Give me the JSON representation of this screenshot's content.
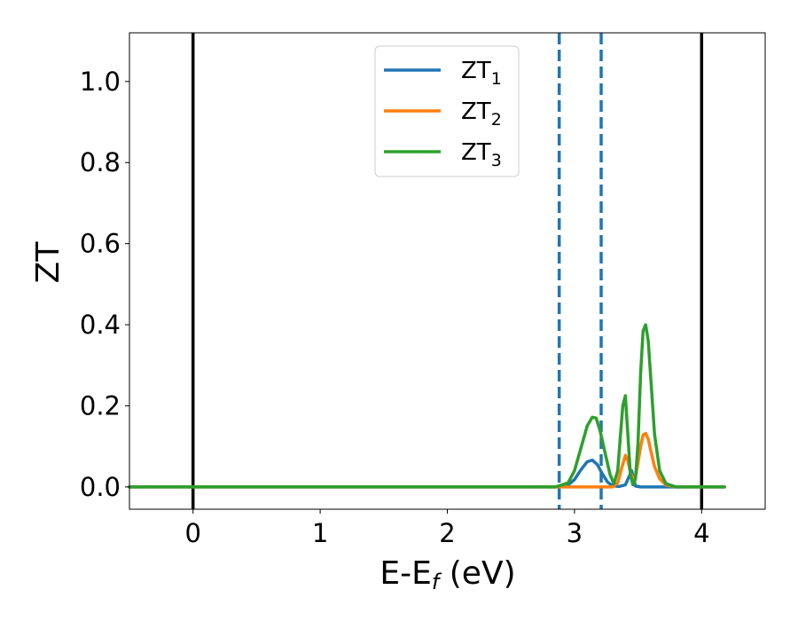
{
  "chart_data": {
    "type": "line",
    "title": "",
    "xlabel": "E-E_f (eV)",
    "xlabel_main": "E-E",
    "xlabel_sub": "f",
    "xlabel_tail": " (eV)",
    "ylabel": "ZT",
    "xlim": [
      -0.5,
      4.5
    ],
    "ylim": [
      -0.055,
      1.12
    ],
    "xticks": [
      0,
      1,
      2,
      3,
      4
    ],
    "xtick_labels": [
      "0",
      "1",
      "2",
      "3",
      "4"
    ],
    "yticks": [
      0.0,
      0.2,
      0.4,
      0.6,
      0.8,
      1.0
    ],
    "ytick_labels": [
      "0.0",
      "0.2",
      "0.4",
      "0.6",
      "0.8",
      "1.0"
    ],
    "grid": false,
    "legend_position": "upper center",
    "vertical_lines": [
      {
        "x": 0.0,
        "style": "solid",
        "color": "#000000"
      },
      {
        "x": 4.0,
        "style": "solid",
        "color": "#000000"
      },
      {
        "x": 2.88,
        "style": "dashed",
        "color": "#1f77b4"
      },
      {
        "x": 3.21,
        "style": "dashed",
        "color": "#1f77b4"
      }
    ],
    "series": [
      {
        "name": "ZT_1",
        "label_main": "ZT",
        "label_sub": "1",
        "color": "#1f77b4",
        "x": [
          -0.5,
          2.85,
          2.95,
          3.0,
          3.05,
          3.1,
          3.14,
          3.18,
          3.22,
          3.26,
          3.3,
          3.35,
          3.4,
          3.45,
          3.48,
          3.52,
          3.6,
          4.18
        ],
        "y": [
          0,
          0,
          0.005,
          0.018,
          0.042,
          0.062,
          0.066,
          0.055,
          0.032,
          0.012,
          0.003,
          0.001,
          0.005,
          0.04,
          0.002,
          0.0,
          0.0,
          0
        ]
      },
      {
        "name": "ZT_2",
        "label_main": "ZT",
        "label_sub": "2",
        "color": "#ff7f0e",
        "x": [
          -0.5,
          3.3,
          3.34,
          3.37,
          3.4,
          3.42,
          3.44,
          3.46,
          3.48,
          3.5,
          3.52,
          3.54,
          3.56,
          3.58,
          3.6,
          3.63,
          3.67,
          3.72,
          3.8,
          4.18
        ],
        "y": [
          0,
          0,
          0.01,
          0.045,
          0.078,
          0.065,
          0.035,
          0.022,
          0.025,
          0.06,
          0.1,
          0.128,
          0.132,
          0.118,
          0.09,
          0.05,
          0.02,
          0.005,
          0,
          0
        ]
      },
      {
        "name": "ZT_3",
        "label_main": "ZT",
        "label_sub": "3",
        "color": "#2ca02c",
        "x": [
          -0.5,
          2.85,
          2.95,
          3.0,
          3.05,
          3.1,
          3.14,
          3.17,
          3.2,
          3.24,
          3.28,
          3.31,
          3.34,
          3.36,
          3.38,
          3.4,
          3.42,
          3.44,
          3.46,
          3.48,
          3.5,
          3.52,
          3.54,
          3.56,
          3.58,
          3.6,
          3.63,
          3.67,
          3.72,
          3.8,
          4.18
        ],
        "y": [
          0,
          0,
          0.01,
          0.04,
          0.095,
          0.15,
          0.172,
          0.17,
          0.14,
          0.085,
          0.03,
          0.008,
          0.04,
          0.12,
          0.2,
          0.225,
          0.13,
          0.03,
          0.005,
          0.02,
          0.11,
          0.28,
          0.385,
          0.4,
          0.36,
          0.27,
          0.13,
          0.04,
          0.008,
          0.0,
          0
        ]
      }
    ]
  }
}
